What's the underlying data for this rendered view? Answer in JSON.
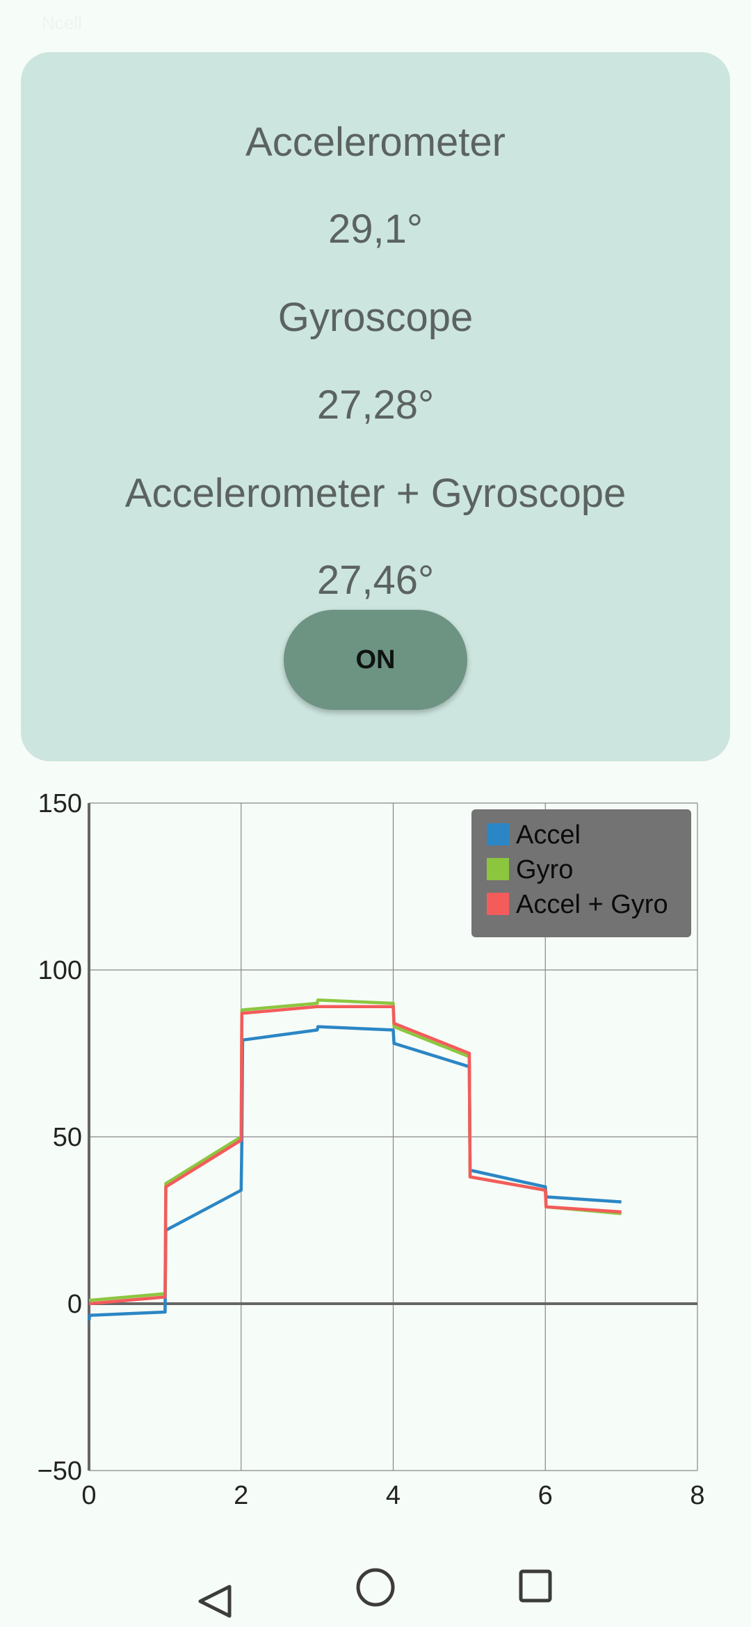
{
  "status_bar": {
    "left_text": "Ncell ",
    "right_text": ""
  },
  "card": {
    "accel_label": "Accelerometer",
    "accel_value": "29,1°",
    "gyro_label": "Gyroscope",
    "gyro_value": "27,28°",
    "combo_label": "Accelerometer + Gyroscope",
    "combo_value": "27,46°",
    "toggle_label": "ON"
  },
  "colors": {
    "card_bg": "#cde5df",
    "button_bg": "#6d9383",
    "accel": "#2b86c5",
    "gyro": "#8cc63f",
    "combo": "#f45b5b",
    "legend_bg": "#737373"
  },
  "chart_data": {
    "type": "line",
    "xlim": [
      0,
      8
    ],
    "ylim": [
      -50,
      150
    ],
    "x_ticks": [
      0,
      2,
      4,
      6,
      8
    ],
    "y_ticks": [
      -50,
      0,
      50,
      100,
      150
    ],
    "grid": true,
    "legend_position": "top-right",
    "series": [
      {
        "name": "Accel",
        "color": "#2b86c5",
        "points": [
          [
            0,
            -5
          ],
          [
            0.01,
            -3.5
          ],
          [
            1,
            -2.5
          ],
          [
            1.01,
            22
          ],
          [
            2,
            34
          ],
          [
            2.01,
            49
          ],
          [
            2.02,
            79
          ],
          [
            3,
            82
          ],
          [
            3.01,
            83
          ],
          [
            4,
            82
          ],
          [
            4.01,
            78
          ],
          [
            5,
            71
          ],
          [
            5.01,
            40
          ],
          [
            6,
            35
          ],
          [
            6.01,
            32
          ],
          [
            7,
            30.5
          ]
        ]
      },
      {
        "name": "Gyro",
        "color": "#8cc63f",
        "points": [
          [
            0,
            1
          ],
          [
            1,
            3
          ],
          [
            1.01,
            36
          ],
          [
            2,
            50
          ],
          [
            2.01,
            88
          ],
          [
            3,
            90
          ],
          [
            3.01,
            91
          ],
          [
            4,
            90
          ],
          [
            4.01,
            83
          ],
          [
            5,
            74
          ],
          [
            5.01,
            38
          ],
          [
            6,
            34
          ],
          [
            6.01,
            29
          ],
          [
            7,
            27
          ]
        ]
      },
      {
        "name": "Accel + Gyro",
        "color": "#f45b5b",
        "points": [
          [
            0,
            0
          ],
          [
            1,
            2
          ],
          [
            1.01,
            35
          ],
          [
            2,
            49
          ],
          [
            2.01,
            87
          ],
          [
            3,
            89
          ],
          [
            4,
            89
          ],
          [
            4.01,
            84
          ],
          [
            5,
            75
          ],
          [
            5.01,
            38
          ],
          [
            6,
            34
          ],
          [
            6.01,
            29
          ],
          [
            7,
            27.5
          ]
        ]
      }
    ]
  },
  "nav": {
    "back_icon": "back-triangle-icon",
    "home_icon": "home-circle-icon",
    "recents_icon": "recents-square-icon"
  }
}
